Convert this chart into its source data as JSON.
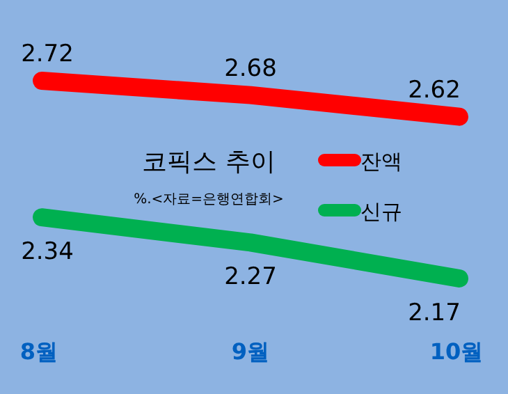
{
  "chart_data": {
    "type": "line",
    "title": "코픽스 추이",
    "subtitle": "%.<자료=은행연합회>",
    "categories": [
      "8월",
      "9월",
      "10월"
    ],
    "series": [
      {
        "name": "잔액",
        "color": "#ff0000",
        "values": [
          2.72,
          2.68,
          2.62
        ]
      },
      {
        "name": "신규",
        "color": "#00b050",
        "values": [
          2.34,
          2.27,
          2.17
        ]
      }
    ],
    "data_labels": true,
    "legend": "center",
    "line_style": "solid"
  }
}
